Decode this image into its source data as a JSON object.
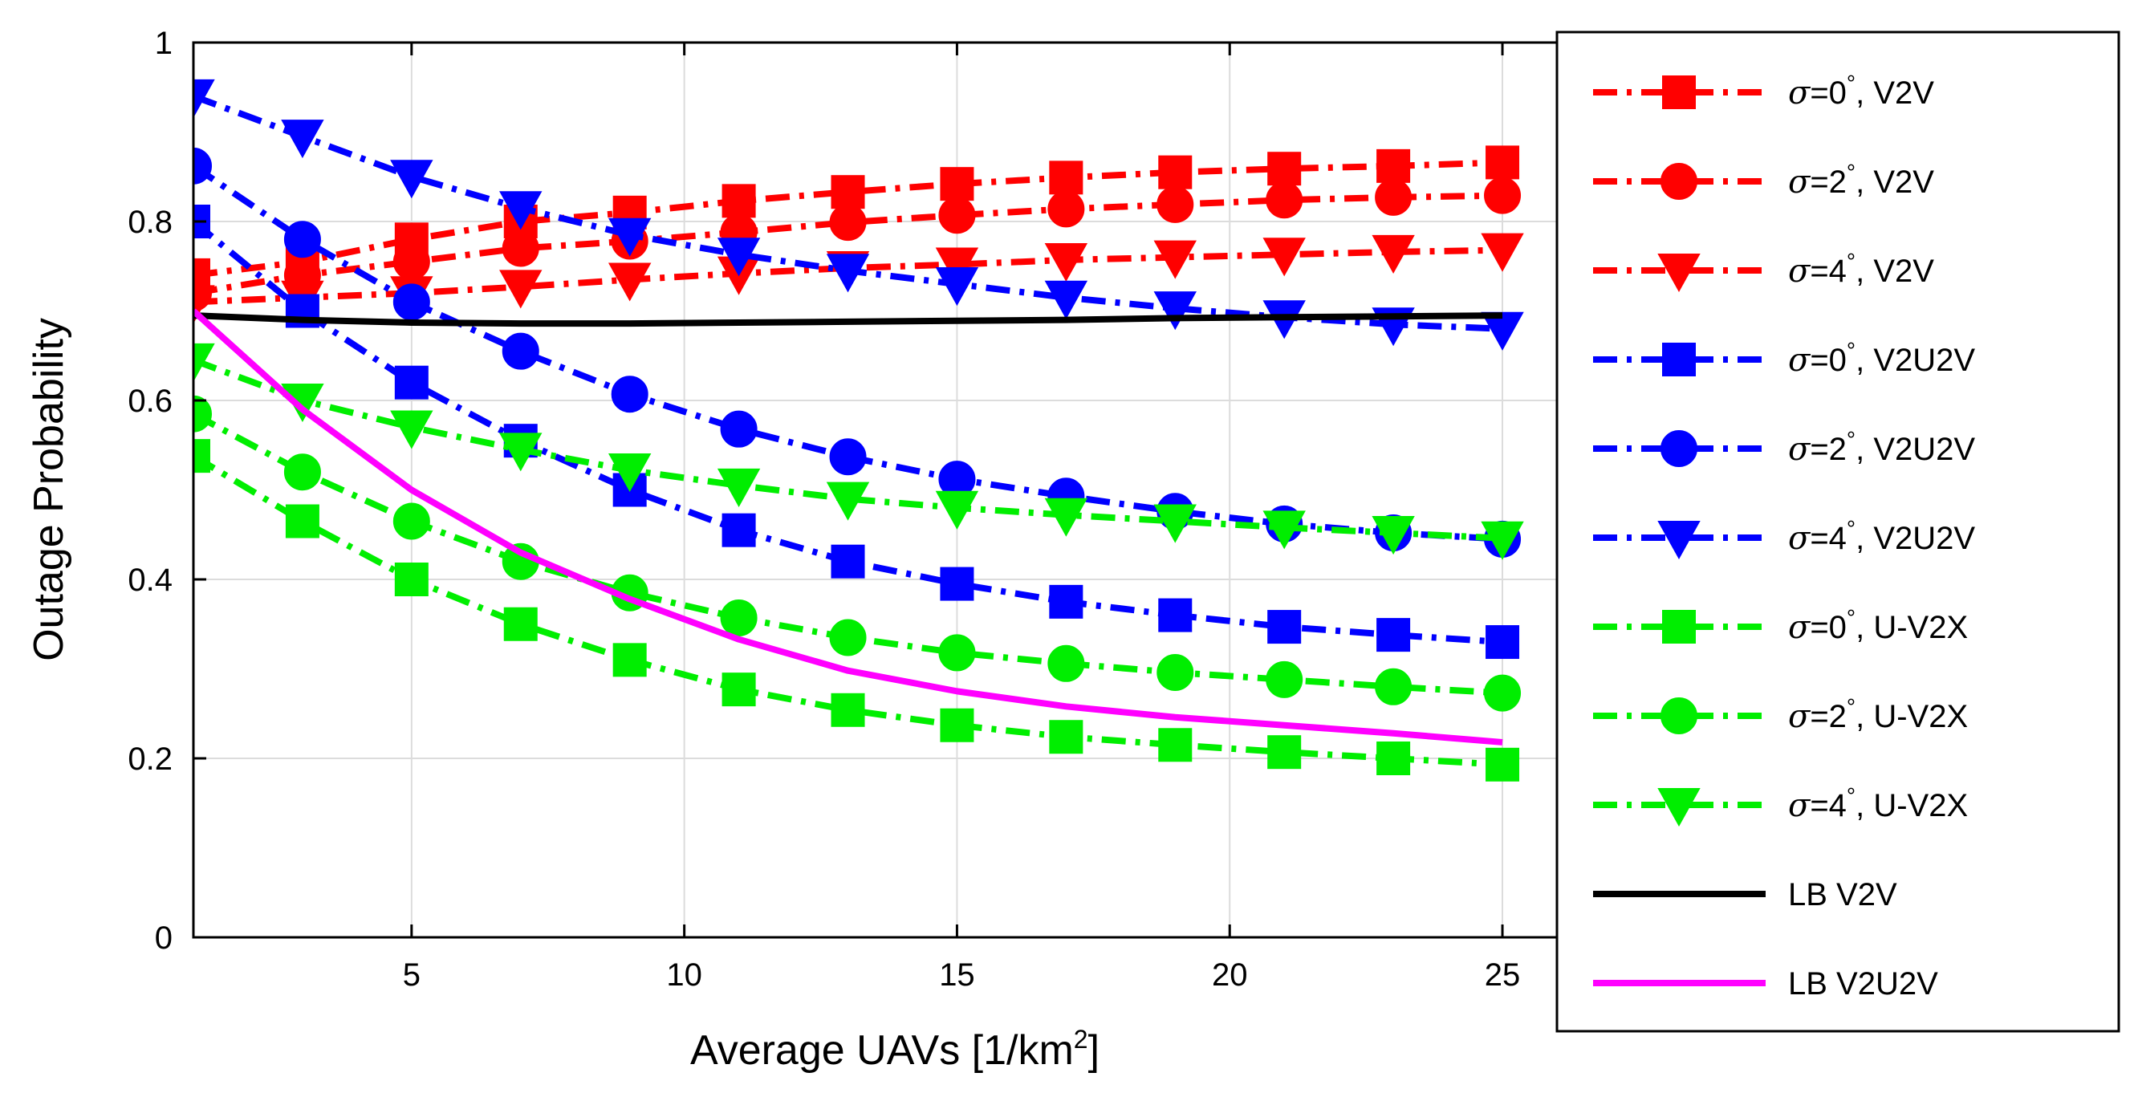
{
  "chart_data": {
    "type": "line",
    "title": "",
    "xlabel": "Average UAVs [1/km",
    "xlabel_sup": "2",
    "xlabel_suffix": "]",
    "ylabel": "Outage Probability",
    "xlim": [
      1,
      26
    ],
    "ylim": [
      0,
      1
    ],
    "xticks": [
      5,
      10,
      15,
      20,
      25
    ],
    "xtick_labels": [
      "5",
      "10",
      "15",
      "20",
      "25"
    ],
    "yticks": [
      0,
      0.2,
      0.4,
      0.6,
      0.8,
      1
    ],
    "ytick_labels": [
      "0",
      "0.2",
      "0.4",
      "0.6",
      "0.8",
      "1"
    ],
    "grid": true,
    "legend_position": "right",
    "x": [
      1,
      3,
      5,
      7,
      9,
      11,
      13,
      15,
      17,
      19,
      21,
      23,
      25
    ],
    "series": [
      {
        "name": "σ=0°, V2V",
        "sigma": "σ",
        "rest": "=0",
        "deg": "°",
        "suffix": ", V2V",
        "color": "#ff0000",
        "marker": "square",
        "style": "dashdot",
        "values": [
          0.74,
          0.755,
          0.78,
          0.8,
          0.81,
          0.823,
          0.833,
          0.842,
          0.849,
          0.855,
          0.859,
          0.862,
          0.866
        ]
      },
      {
        "name": "σ=2°, V2V",
        "sigma": "σ",
        "rest": "=2",
        "deg": "°",
        "suffix": ", V2V",
        "color": "#ff0000",
        "marker": "circle",
        "style": "dashdot",
        "values": [
          0.72,
          0.74,
          0.755,
          0.77,
          0.778,
          0.788,
          0.799,
          0.807,
          0.814,
          0.819,
          0.824,
          0.827,
          0.829
        ]
      },
      {
        "name": "σ=4°, V2V",
        "sigma": "σ",
        "rest": "=4",
        "deg": "°",
        "suffix": ", V2V",
        "color": "#ff0000",
        "marker": "triangle-down",
        "style": "dashdot",
        "values": [
          0.71,
          0.715,
          0.72,
          0.727,
          0.735,
          0.742,
          0.748,
          0.752,
          0.757,
          0.76,
          0.763,
          0.766,
          0.768
        ]
      },
      {
        "name": "σ=0°, V2U2V",
        "sigma": "σ",
        "rest": "=0",
        "deg": "°",
        "suffix": ", V2U2V",
        "color": "#0000ff",
        "marker": "square",
        "style": "dashdot",
        "values": [
          0.8,
          0.7,
          0.62,
          0.555,
          0.5,
          0.455,
          0.42,
          0.395,
          0.375,
          0.36,
          0.347,
          0.338,
          0.33
        ]
      },
      {
        "name": "σ=2°, V2U2V",
        "sigma": "σ",
        "rest": "=2",
        "deg": "°",
        "suffix": ", V2U2V",
        "color": "#0000ff",
        "marker": "circle",
        "style": "dashdot",
        "values": [
          0.862,
          0.78,
          0.71,
          0.655,
          0.607,
          0.568,
          0.537,
          0.512,
          0.493,
          0.476,
          0.462,
          0.452,
          0.445
        ]
      },
      {
        "name": "σ=4°, V2U2V",
        "sigma": "σ",
        "rest": "=4",
        "deg": "°",
        "suffix": ", V2U2V",
        "color": "#0000ff",
        "marker": "triangle-down",
        "style": "dashdot",
        "values": [
          0.94,
          0.895,
          0.85,
          0.815,
          0.785,
          0.763,
          0.745,
          0.73,
          0.715,
          0.703,
          0.693,
          0.685,
          0.68
        ]
      },
      {
        "name": "σ=0°, U-V2X",
        "sigma": "σ",
        "rest": "=0",
        "deg": "°",
        "suffix": ", U-V2X",
        "color": "#00ee00",
        "marker": "square",
        "style": "dashdot",
        "values": [
          0.538,
          0.465,
          0.4,
          0.35,
          0.31,
          0.277,
          0.254,
          0.237,
          0.224,
          0.215,
          0.207,
          0.2,
          0.193
        ]
      },
      {
        "name": "σ=2°, U-V2X",
        "sigma": "σ",
        "rest": "=2",
        "deg": "°",
        "suffix": ", U-V2X",
        "color": "#00ee00",
        "marker": "circle",
        "style": "dashdot",
        "values": [
          0.585,
          0.52,
          0.465,
          0.42,
          0.385,
          0.357,
          0.335,
          0.318,
          0.306,
          0.296,
          0.288,
          0.28,
          0.273
        ]
      },
      {
        "name": "σ=4°, U-V2X",
        "sigma": "σ",
        "rest": "=4",
        "deg": "°",
        "suffix": ", U-V2X",
        "color": "#00ee00",
        "marker": "triangle-down",
        "style": "dashdot",
        "values": [
          0.645,
          0.6,
          0.57,
          0.545,
          0.522,
          0.505,
          0.49,
          0.48,
          0.472,
          0.465,
          0.458,
          0.452,
          0.446
        ]
      },
      {
        "name": "LB V2V",
        "label": "LB V2V",
        "color": "#000000",
        "marker": "none",
        "style": "solid",
        "values": [
          0.695,
          0.69,
          0.687,
          0.686,
          0.686,
          0.687,
          0.688,
          0.689,
          0.69,
          0.692,
          0.693,
          0.694,
          0.695
        ]
      },
      {
        "name": "LB V2U2V",
        "label": "LB V2U2V",
        "color": "#ff00ff",
        "marker": "none",
        "style": "solid",
        "values": [
          0.7,
          0.59,
          0.5,
          0.43,
          0.378,
          0.333,
          0.298,
          0.275,
          0.258,
          0.246,
          0.237,
          0.228,
          0.218
        ]
      }
    ]
  }
}
